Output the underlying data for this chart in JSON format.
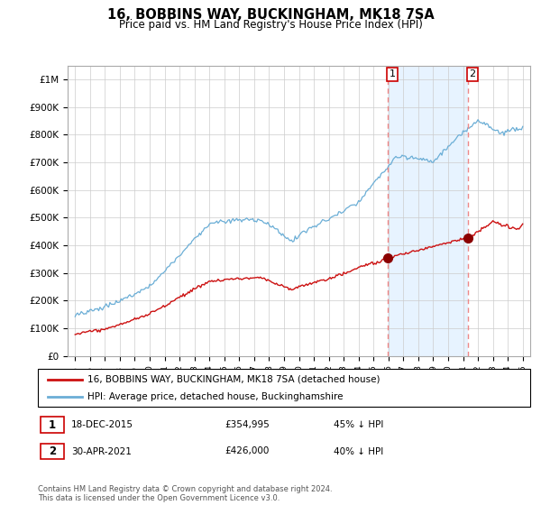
{
  "title": "16, BOBBINS WAY, BUCKINGHAM, MK18 7SA",
  "subtitle": "Price paid vs. HM Land Registry's House Price Index (HPI)",
  "ylabel_ticks": [
    "£0",
    "£100K",
    "£200K",
    "£300K",
    "£400K",
    "£500K",
    "£600K",
    "£700K",
    "£800K",
    "£900K",
    "£1M"
  ],
  "ytick_values": [
    0,
    100000,
    200000,
    300000,
    400000,
    500000,
    600000,
    700000,
    800000,
    900000,
    1000000
  ],
  "ylim": [
    0,
    1050000
  ],
  "hpi_color": "#6baed6",
  "price_color": "#cc1111",
  "marker_color": "#8b0000",
  "dashed_color": "#ee8888",
  "shade_color": "#ddeeff",
  "annotation_box_color": "#cc0000",
  "transaction1": {
    "date": "18-DEC-2015",
    "price": 354995,
    "label": "1",
    "x_year": 2015.96
  },
  "transaction2": {
    "date": "30-APR-2021",
    "price": 426000,
    "label": "2",
    "x_year": 2021.33
  },
  "legend_entry1": "16, BOBBINS WAY, BUCKINGHAM, MK18 7SA (detached house)",
  "legend_entry2": "HPI: Average price, detached house, Buckinghamshire",
  "footer": "Contains HM Land Registry data © Crown copyright and database right 2024.\nThis data is licensed under the Open Government Licence v3.0.",
  "xlim": [
    1994.5,
    2025.5
  ]
}
